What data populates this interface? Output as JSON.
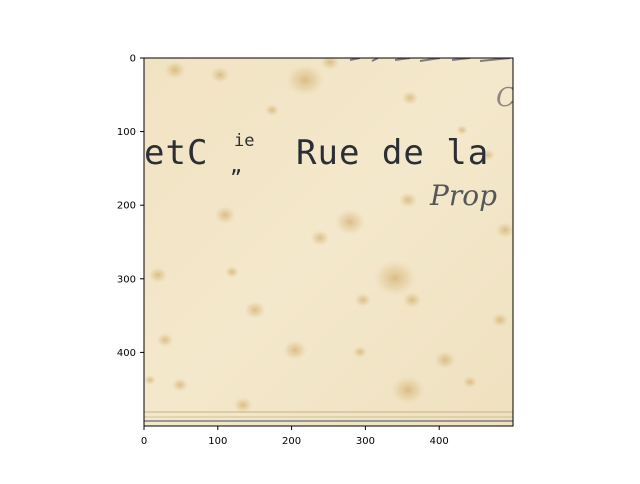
{
  "figure": {
    "x_ticks": [
      "0",
      "100",
      "200",
      "300",
      "400"
    ],
    "y_ticks": [
      "0",
      "100",
      "200",
      "300",
      "400"
    ],
    "x_range": [
      0,
      500
    ],
    "y_range": [
      0,
      500
    ],
    "y_inverted": true
  },
  "document_image": {
    "paper_color": "#f2e6c8",
    "stain_color": "#c9a15a",
    "line_main_left": "etC",
    "line_main_superscript": "ie",
    "line_main_sub": "„",
    "line_main_right": "Rue de la",
    "line_sub_italic": "Prop",
    "line_top_fragment": "C"
  }
}
